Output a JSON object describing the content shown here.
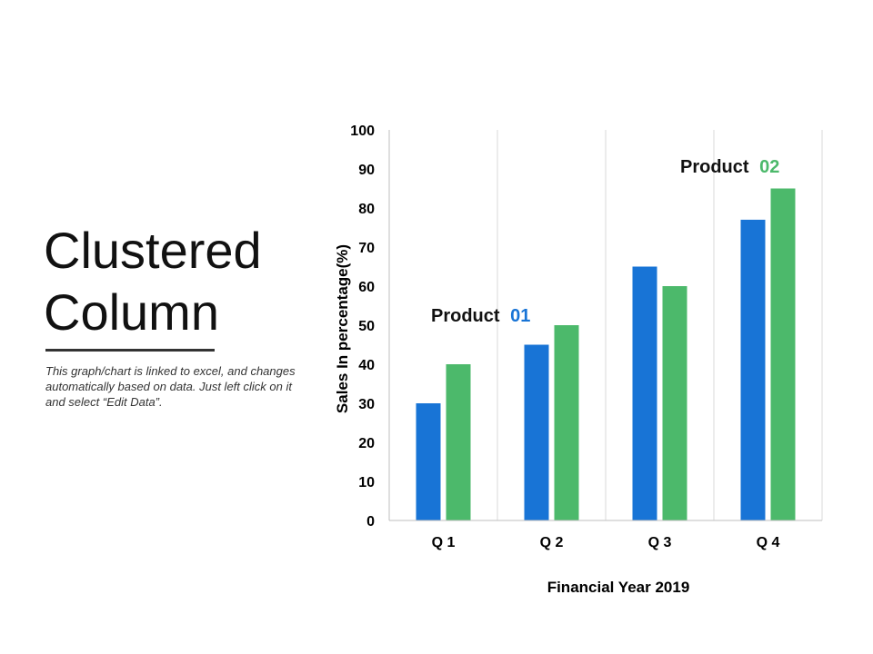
{
  "slide": {
    "title_line1": "Clustered",
    "title_line2": "Column",
    "description": "This graph/chart is linked to excel, and changes automatically based on data.  Just left click on it and select “Edit Data”."
  },
  "chart_data": {
    "type": "bar",
    "categories": [
      "Q 1",
      "Q 2",
      "Q 3",
      "Q 4"
    ],
    "series": [
      {
        "name": "Product 01",
        "values": [
          30,
          45,
          65,
          77
        ],
        "color": "#1874D6"
      },
      {
        "name": "Product 02",
        "values": [
          40,
          50,
          60,
          85
        ],
        "color": "#4CB96B"
      }
    ],
    "series_labels": [
      {
        "word": "Product",
        "number": "01",
        "color": "#1874D6"
      },
      {
        "word": "Product",
        "number": "02",
        "color": "#4CB96B"
      }
    ],
    "title": "",
    "xlabel": "Financial Year 2019",
    "ylabel": "Sales In percentage(%)",
    "ylim": [
      0,
      100
    ],
    "yticks": [
      0,
      10,
      20,
      30,
      40,
      50,
      60,
      70,
      80,
      90,
      100
    ],
    "grid": "vertical separators between categories",
    "legend": "inline labels above bars"
  }
}
